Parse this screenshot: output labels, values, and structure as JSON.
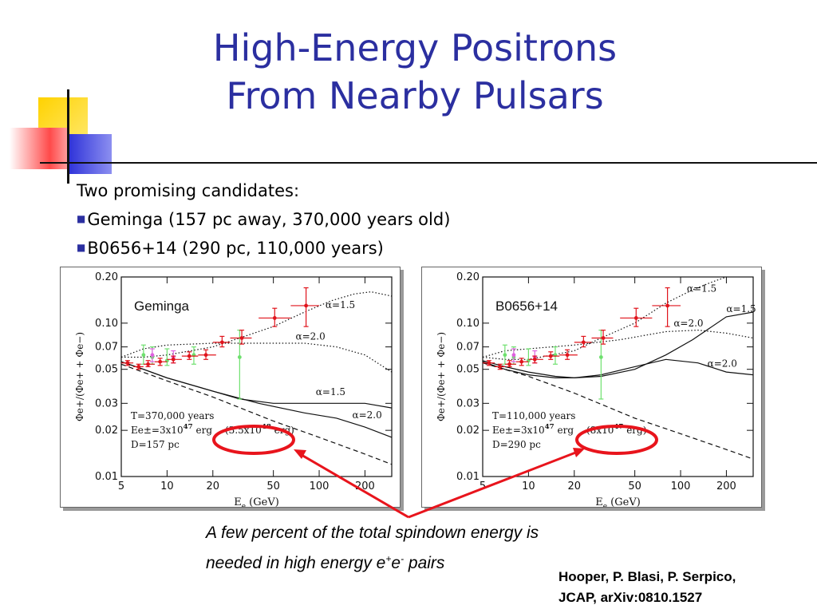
{
  "slide": {
    "title_line1": "High-Energy Positrons",
    "title_line2": "From Nearby Pulsars",
    "intro": "Two promising candidates:",
    "bullets": [
      "Geminga (157 pc away, 370,000 years old)",
      "B0656+14 (290 pc, 110,000 years)"
    ],
    "caption_line1": "A few percent of the total spindown energy is",
    "caption_line2_prefix": "needed in high energy e",
    "caption_sup1": "+",
    "caption_mid": "e",
    "caption_sup2": "-",
    "caption_suffix": " pairs",
    "reference_line1": "Hooper, P. Blasi, P. Serpico,",
    "reference_line2": "JCAP, arXiv:0810.1527",
    "colors": {
      "title": "#2b2fa0",
      "highlight_red": "#e8141c",
      "deco_yellow": "#ffd200",
      "deco_blue": "#2b2fd8",
      "deco_red": "#ff5a5a",
      "data_red": "#e0141c",
      "data_green": "#6ee06e",
      "data_magenta": "#e060e0"
    }
  },
  "chart_data": [
    {
      "type": "line",
      "panel_label": "Geminga",
      "xlabel": "E_e (GeV)",
      "ylabel": "Φe+/(Φe+ + Φe−)",
      "xscale": "log",
      "yscale": "log",
      "xlim": [
        5,
        300
      ],
      "ylim": [
        0.01,
        0.2
      ],
      "x_ticks": [
        "5",
        "10",
        "20",
        "50",
        "100",
        "200"
      ],
      "y_ticks": [
        "0.20",
        "0.10",
        "0.07",
        "0.05",
        "0.03",
        "0.02",
        "0.01"
      ],
      "params": [
        "T=370,000 years",
        "Ee±=3x10^47 erg",
        "D=157 pc"
      ],
      "energy_note": "(3.5x10^48 erg)",
      "annotations": [
        {
          "text": "α=1.5",
          "x": 110,
          "y": 0.125
        },
        {
          "text": "α=2.0",
          "x": 70,
          "y": 0.078
        },
        {
          "text": "α=1.5",
          "x": 95,
          "y": 0.034
        },
        {
          "text": "α=2.0",
          "x": 165,
          "y": 0.024
        }
      ],
      "series": [
        {
          "style": "dotted",
          "x": [
            5,
            7,
            10,
            20,
            30,
            50,
            80,
            120,
            170,
            220,
            300
          ],
          "y": [
            0.06,
            0.06,
            0.062,
            0.07,
            0.08,
            0.095,
            0.118,
            0.14,
            0.155,
            0.16,
            0.15
          ]
        },
        {
          "style": "dotted",
          "x": [
            5,
            7,
            10,
            20,
            40,
            80,
            130,
            200,
            300
          ],
          "y": [
            0.06,
            0.068,
            0.072,
            0.074,
            0.074,
            0.074,
            0.07,
            0.062,
            0.048
          ]
        },
        {
          "style": "solid",
          "x": [
            5,
            7,
            10,
            20,
            30,
            50,
            80,
            120,
            200,
            300
          ],
          "y": [
            0.056,
            0.05,
            0.044,
            0.036,
            0.032,
            0.03,
            0.03,
            0.03,
            0.03,
            0.028
          ]
        },
        {
          "style": "solid",
          "x": [
            5,
            7,
            10,
            20,
            40,
            80,
            130,
            200,
            300
          ],
          "y": [
            0.056,
            0.05,
            0.044,
            0.036,
            0.03,
            0.026,
            0.024,
            0.021,
            0.018
          ]
        },
        {
          "style": "dashed",
          "x": [
            5,
            10,
            20,
            50,
            100,
            200,
            300
          ],
          "y": [
            0.054,
            0.042,
            0.033,
            0.023,
            0.018,
            0.014,
            0.012
          ]
        }
      ],
      "points_red": [
        {
          "x": 5.5,
          "y": 0.055,
          "lo": 0.053,
          "hi": 0.057,
          "xl": 5,
          "xh": 6
        },
        {
          "x": 6.5,
          "y": 0.052,
          "lo": 0.05,
          "hi": 0.054,
          "xl": 6,
          "xh": 7
        },
        {
          "x": 7.5,
          "y": 0.054,
          "lo": 0.052,
          "hi": 0.057,
          "xl": 7,
          "xh": 8.3
        },
        {
          "x": 9,
          "y": 0.056,
          "lo": 0.053,
          "hi": 0.059,
          "xl": 8.3,
          "xh": 10
        },
        {
          "x": 11,
          "y": 0.058,
          "lo": 0.055,
          "hi": 0.061,
          "xl": 10,
          "xh": 12.5
        },
        {
          "x": 14,
          "y": 0.061,
          "lo": 0.058,
          "hi": 0.065,
          "xl": 12.5,
          "xh": 16
        },
        {
          "x": 18,
          "y": 0.062,
          "lo": 0.058,
          "hi": 0.067,
          "xl": 16,
          "xh": 21
        },
        {
          "x": 23,
          "y": 0.075,
          "lo": 0.07,
          "hi": 0.082,
          "xl": 20,
          "xh": 26
        },
        {
          "x": 31,
          "y": 0.08,
          "lo": 0.073,
          "hi": 0.09,
          "xl": 26,
          "xh": 36
        },
        {
          "x": 51,
          "y": 0.108,
          "lo": 0.095,
          "hi": 0.125,
          "xl": 40,
          "xh": 65
        },
        {
          "x": 82,
          "y": 0.13,
          "lo": 0.095,
          "hi": 0.17,
          "xl": 65,
          "xh": 100
        }
      ],
      "points_green": [
        {
          "x": 7,
          "y": 0.062,
          "lo": 0.054,
          "hi": 0.072
        },
        {
          "x": 8,
          "y": 0.06,
          "lo": 0.054,
          "hi": 0.07
        },
        {
          "x": 10,
          "y": 0.057,
          "lo": 0.053,
          "hi": 0.068
        },
        {
          "x": 15,
          "y": 0.062,
          "lo": 0.054,
          "hi": 0.07
        },
        {
          "x": 30,
          "y": 0.06,
          "lo": 0.032,
          "hi": 0.09
        }
      ],
      "points_magenta": [
        {
          "x": 8,
          "y": 0.062,
          "lo": 0.056,
          "hi": 0.068
        },
        {
          "x": 11,
          "y": 0.06,
          "lo": 0.055,
          "hi": 0.066
        }
      ]
    },
    {
      "type": "line",
      "panel_label": "B0656+14",
      "xlabel": "E_e (GeV)",
      "ylabel": "Φe+/(Φe+ + Φe−)",
      "xscale": "log",
      "yscale": "log",
      "xlim": [
        5,
        300
      ],
      "ylim": [
        0.01,
        0.2
      ],
      "x_ticks": [
        "5",
        "10",
        "20",
        "50",
        "100",
        "200"
      ],
      "y_ticks": [
        "0.20",
        "0.10",
        "0.07",
        "0.05",
        "0.03",
        "0.02",
        "0.01"
      ],
      "params": [
        "T=110,000 years",
        "Ee±=3x10^47 erg",
        "D=290 pc"
      ],
      "energy_note": "(8x10^47 erg)",
      "annotations": [
        {
          "text": "α=1.5",
          "x": 110,
          "y": 0.16
        },
        {
          "text": "α=1.5",
          "x": 200,
          "y": 0.118
        },
        {
          "text": "α=2.0",
          "x": 90,
          "y": 0.095
        },
        {
          "text": "α=2.0",
          "x": 150,
          "y": 0.052
        }
      ],
      "series": [
        {
          "style": "dotted",
          "x": [
            5,
            7,
            10,
            20,
            30,
            50,
            80,
            120,
            160,
            200
          ],
          "y": [
            0.06,
            0.058,
            0.058,
            0.066,
            0.08,
            0.1,
            0.135,
            0.165,
            0.185,
            0.2
          ]
        },
        {
          "style": "dotted",
          "x": [
            5,
            7,
            10,
            20,
            40,
            80,
            130,
            200,
            300
          ],
          "y": [
            0.06,
            0.066,
            0.068,
            0.072,
            0.078,
            0.088,
            0.09,
            0.086,
            0.08
          ]
        },
        {
          "style": "solid",
          "x": [
            5,
            7,
            10,
            15,
            20,
            30,
            50,
            80,
            120,
            200,
            300
          ],
          "y": [
            0.057,
            0.052,
            0.048,
            0.045,
            0.044,
            0.045,
            0.05,
            0.062,
            0.078,
            0.11,
            0.118
          ]
        },
        {
          "style": "solid",
          "x": [
            5,
            7,
            10,
            15,
            20,
            30,
            50,
            80,
            130,
            200,
            300
          ],
          "y": [
            0.056,
            0.05,
            0.046,
            0.044,
            0.044,
            0.046,
            0.052,
            0.058,
            0.055,
            0.048,
            0.046
          ]
        },
        {
          "style": "dashed",
          "x": [
            5,
            10,
            20,
            50,
            100,
            200,
            300
          ],
          "y": [
            0.055,
            0.045,
            0.035,
            0.024,
            0.019,
            0.015,
            0.013
          ]
        }
      ],
      "points_red": [
        {
          "x": 5.5,
          "y": 0.055,
          "lo": 0.053,
          "hi": 0.057,
          "xl": 5,
          "xh": 6
        },
        {
          "x": 6.5,
          "y": 0.052,
          "lo": 0.05,
          "hi": 0.054,
          "xl": 6,
          "xh": 7
        },
        {
          "x": 7.5,
          "y": 0.054,
          "lo": 0.052,
          "hi": 0.057,
          "xl": 7,
          "xh": 8.3
        },
        {
          "x": 9,
          "y": 0.056,
          "lo": 0.053,
          "hi": 0.059,
          "xl": 8.3,
          "xh": 10
        },
        {
          "x": 11,
          "y": 0.058,
          "lo": 0.055,
          "hi": 0.061,
          "xl": 10,
          "xh": 12.5
        },
        {
          "x": 14,
          "y": 0.061,
          "lo": 0.058,
          "hi": 0.065,
          "xl": 12.5,
          "xh": 16
        },
        {
          "x": 18,
          "y": 0.062,
          "lo": 0.058,
          "hi": 0.067,
          "xl": 16,
          "xh": 21
        },
        {
          "x": 23,
          "y": 0.075,
          "lo": 0.07,
          "hi": 0.082,
          "xl": 20,
          "xh": 26
        },
        {
          "x": 31,
          "y": 0.08,
          "lo": 0.073,
          "hi": 0.09,
          "xl": 26,
          "xh": 36
        },
        {
          "x": 51,
          "y": 0.108,
          "lo": 0.095,
          "hi": 0.125,
          "xl": 40,
          "xh": 65
        },
        {
          "x": 82,
          "y": 0.13,
          "lo": 0.095,
          "hi": 0.17,
          "xl": 65,
          "xh": 100
        }
      ],
      "points_green": [
        {
          "x": 7,
          "y": 0.062,
          "lo": 0.054,
          "hi": 0.072
        },
        {
          "x": 8,
          "y": 0.06,
          "lo": 0.054,
          "hi": 0.07
        },
        {
          "x": 10,
          "y": 0.057,
          "lo": 0.053,
          "hi": 0.068
        },
        {
          "x": 15,
          "y": 0.062,
          "lo": 0.054,
          "hi": 0.07
        },
        {
          "x": 30,
          "y": 0.06,
          "lo": 0.032,
          "hi": 0.09
        }
      ],
      "points_magenta": [
        {
          "x": 8,
          "y": 0.062,
          "lo": 0.056,
          "hi": 0.068
        },
        {
          "x": 11,
          "y": 0.06,
          "lo": 0.055,
          "hi": 0.066
        }
      ]
    }
  ]
}
